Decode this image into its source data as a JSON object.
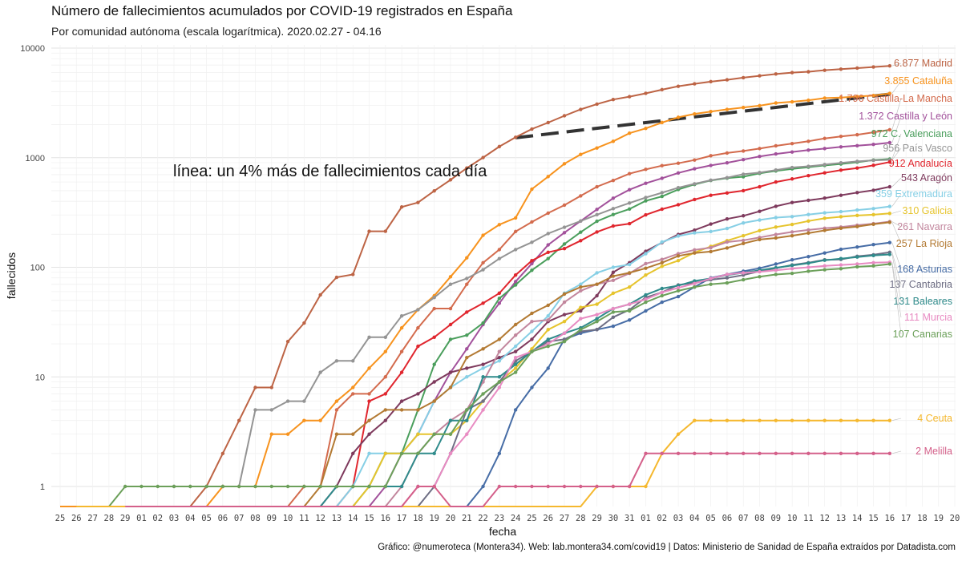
{
  "title": "Número de fallecimientos acumulados por COVID-19 registrados en España",
  "subtitle": "Por comunidad autónoma (escala logarítmica). 2020.02.27 - 04.16",
  "caption": "Gráfico: @numeroteca (Montera34). Web: lab.montera34.com/covid19 | Datos: Ministerio de Sanidad de España extraídos por Datadista.com",
  "chart_data": {
    "type": "line",
    "title": "Número de fallecimientos acumulados por COVID-19 registrados en España",
    "subtitle": "Por comunidad autónoma (escala logarítmica). 2020.02.27 - 04.16",
    "xlabel": "fecha",
    "ylabel": "fallecidos",
    "y_scale": "log",
    "ylim": [
      0.7,
      12000
    ],
    "y_ticks": [
      1,
      10,
      100,
      1000,
      10000
    ],
    "y_tick_labels": [
      "1",
      "10",
      "100",
      "1000",
      "10000"
    ],
    "x_tick_labels": [
      "25",
      "26",
      "27",
      "28",
      "29",
      "01",
      "02",
      "03",
      "04",
      "05",
      "06",
      "07",
      "08",
      "09",
      "10",
      "11",
      "12",
      "13",
      "14",
      "15",
      "16",
      "17",
      "18",
      "19",
      "20",
      "21",
      "22",
      "23",
      "24",
      "25",
      "26",
      "27",
      "28",
      "29",
      "30",
      "31",
      "01",
      "02",
      "03",
      "04",
      "05",
      "06",
      "07",
      "08",
      "09",
      "10",
      "11",
      "12",
      "13",
      "14",
      "15",
      "16",
      "17",
      "18",
      "19",
      "20"
    ],
    "data_start_label": "03",
    "grid": true,
    "annotation": "línea: un 4% más de fallecimientos cada día",
    "reference_line": {
      "description": "4% daily growth",
      "from_label": "24",
      "to_label": "16",
      "start_value": 1520,
      "end_value": 3800,
      "style": "dashed",
      "color": "#333333"
    },
    "series": [
      {
        "label": "6.877 Madrid",
        "color": "#bd6445",
        "values": [
          0.5,
          0.5,
          1,
          2,
          4,
          8,
          8,
          21,
          31,
          56,
          81,
          86,
          213,
          213,
          355,
          390,
          498,
          628,
          804,
          1002,
          1263,
          1535,
          1825,
          2090,
          2412,
          2757,
          3082,
          3392,
          3603,
          3865,
          4175,
          4483,
          4723,
          4941,
          5136,
          5371,
          5586,
          5800,
          5972,
          6084,
          6278,
          6423,
          6569,
          6724,
          6877
        ]
      },
      {
        "label": "3.855 Cataluña",
        "color": "#f7931e",
        "values": [
          0.5,
          0.5,
          0.5,
          0.5,
          0.5,
          0.5,
          0.5,
          0.5,
          0.5,
          0.5,
          1,
          1,
          1,
          3,
          3,
          4,
          4,
          6,
          8,
          12,
          17,
          28,
          41,
          55,
          82,
          122,
          196,
          245,
          282,
          516,
          672,
          880,
          1070,
          1226,
          1410,
          1672,
          1849,
          2093,
          2335,
          2508,
          2637,
          2756,
          2870,
          2981,
          3155,
          3234,
          3340,
          3497,
          3531,
          3614,
          3692,
          3855
        ]
      },
      {
        "label": "1.796 Castilla-La Mancha",
        "color": "#d36b4d",
        "values": [
          0.5,
          0.5,
          0.5,
          0.5,
          0.5,
          0.5,
          0.5,
          0.5,
          0.5,
          0.5,
          0.5,
          1,
          1,
          5,
          7,
          7,
          10,
          17,
          28,
          42,
          42,
          70,
          110,
          145,
          212,
          259,
          312,
          369,
          448,
          543,
          620,
          715,
          782,
          846,
          890,
          951,
          1041,
          1103,
          1150,
          1211,
          1283,
          1345,
          1410,
          1498,
          1563,
          1619,
          1703,
          1796
        ]
      },
      {
        "label": "1.372 Castilla y León",
        "color": "#a2519b",
        "values": [
          0.5,
          0.5,
          0.5,
          0.5,
          0.5,
          0.5,
          0.5,
          0.5,
          0.5,
          0.5,
          0.5,
          0.5,
          0.5,
          0.5,
          1,
          2,
          3,
          6,
          11,
          18,
          30,
          47,
          74,
          108,
          160,
          207,
          264,
          337,
          427,
          510,
          584,
          649,
          725,
          792,
          850,
          898,
          960,
          1026,
          1082,
          1127,
          1172,
          1211,
          1254,
          1287,
          1321,
          1372
        ]
      },
      {
        "label": "972 C. Valenciana",
        "color": "#4a9e5c",
        "values": [
          0.5,
          0.5,
          0.5,
          0.5,
          0.5,
          0.5,
          0.5,
          0.5,
          0.5,
          0.5,
          0.5,
          0.5,
          1,
          2,
          2,
          5,
          13,
          22,
          24,
          31,
          52,
          69,
          94,
          120,
          163,
          209,
          263,
          303,
          340,
          404,
          443,
          513,
          570,
          619,
          650,
          670,
          720,
          757,
          791,
          819,
          850,
          876,
          910,
          952,
          972
        ]
      },
      {
        "label": "956 País Vasco",
        "color": "#949494",
        "values": [
          1,
          1,
          1,
          1,
          1,
          5,
          5,
          6,
          6,
          11,
          14,
          14,
          23,
          23,
          36,
          41,
          53,
          70,
          79,
          95,
          120,
          145,
          169,
          203,
          232,
          264,
          302,
          343,
          386,
          433,
          479,
          532,
          577,
          623,
          657,
          706,
          731,
          771,
          813,
          834,
          865,
          897,
          925,
          945,
          956
        ]
      },
      {
        "label": "912 Andalucía",
        "color": "#e0262e",
        "values": [
          0.5,
          0.5,
          0.5,
          0.5,
          0.5,
          0.5,
          0.5,
          0.5,
          0.5,
          0.5,
          0.5,
          0.5,
          0.5,
          0.5,
          1,
          6,
          7,
          11,
          19,
          23,
          30,
          39,
          47,
          58,
          85,
          115,
          137,
          148,
          175,
          210,
          238,
          250,
          301,
          339,
          372,
          415,
          454,
          476,
          500,
          543,
          600,
          640,
          685,
          727,
          770,
          804,
          852,
          912
        ]
      },
      {
        "label": "543 Aragón",
        "color": "#7e3a5d",
        "values": [
          0.5,
          0.5,
          0.5,
          0.5,
          0.5,
          0.5,
          0.5,
          0.5,
          0.5,
          0.5,
          0.5,
          0.5,
          0.5,
          1,
          2,
          3,
          4,
          6,
          7,
          9,
          11,
          12,
          13,
          15,
          17,
          22,
          32,
          37,
          40,
          55,
          90,
          110,
          140,
          168,
          199,
          218,
          248,
          276,
          295,
          324,
          360,
          390,
          408,
          428,
          454,
          480,
          504,
          543
        ]
      },
      {
        "label": "359 Extremadura",
        "color": "#86cfe5",
        "values": [
          0.5,
          0.5,
          0.5,
          0.5,
          0.5,
          0.5,
          0.5,
          0.5,
          0.5,
          0.5,
          0.5,
          0.5,
          0.5,
          1,
          2,
          2,
          2,
          3,
          6,
          8,
          10,
          12,
          14,
          19,
          26,
          36,
          58,
          70,
          89,
          100,
          106,
          133,
          170,
          193,
          206,
          212,
          226,
          254,
          270,
          284,
          290,
          303,
          314,
          322,
          333,
          343,
          359
        ]
      },
      {
        "label": "310 Galicia",
        "color": "#e6c42d",
        "values": [
          0.5,
          0.5,
          0.5,
          0.5,
          0.5,
          0.5,
          0.5,
          0.5,
          0.5,
          0.5,
          0.5,
          0.5,
          0.5,
          1,
          2,
          2,
          3,
          3,
          3,
          4,
          6,
          9,
          12,
          18,
          27,
          32,
          43,
          46,
          58,
          66,
          85,
          102,
          115,
          136,
          155,
          175,
          194,
          216,
          233,
          246,
          264,
          280,
          289,
          297,
          302,
          310
        ]
      },
      {
        "label": "261 Navarra",
        "color": "#c2869d",
        "values": [
          0.5,
          0.5,
          0.5,
          0.5,
          0.5,
          0.5,
          0.5,
          0.5,
          0.5,
          0.5,
          0.5,
          0.5,
          0.5,
          0.5,
          0.5,
          0.5,
          1,
          2,
          3,
          4,
          5,
          9,
          17,
          24,
          32,
          33,
          48,
          61,
          70,
          76,
          88,
          108,
          118,
          133,
          144,
          151,
          170,
          176,
          187,
          199,
          210,
          219,
          227,
          233,
          242,
          250,
          261
        ]
      },
      {
        "label": "257 La Rioja",
        "color": "#b37a33",
        "values": [
          0.5,
          0.5,
          0.5,
          0.5,
          0.5,
          0.5,
          0.5,
          0.5,
          0.5,
          0.5,
          0.5,
          0.5,
          1,
          3,
          3,
          4,
          5,
          5,
          5,
          6,
          8,
          15,
          18,
          22,
          30,
          38,
          45,
          57,
          66,
          70,
          83,
          89,
          98,
          110,
          127,
          135,
          139,
          150,
          165,
          179,
          185,
          194,
          205,
          217,
          227,
          235,
          247,
          257
        ]
      },
      {
        "label": "168 Asturias",
        "color": "#476da6",
        "values": [
          0.5,
          0.5,
          0.5,
          0.5,
          0.5,
          0.5,
          0.5,
          0.5,
          0.5,
          0.5,
          0.5,
          0.5,
          0.5,
          0.5,
          0.5,
          0.5,
          0.5,
          0.5,
          0.5,
          1,
          2,
          5,
          8,
          12,
          22,
          25,
          27,
          29,
          33,
          40,
          48,
          54,
          66,
          80,
          86,
          92,
          98,
          107,
          117,
          125,
          135,
          146,
          153,
          161,
          168
        ]
      },
      {
        "label": "137 Cantabria",
        "color": "#6e6e84",
        "values": [
          0.5,
          0.5,
          0.5,
          0.5,
          0.5,
          0.5,
          0.5,
          0.5,
          0.5,
          0.5,
          0.5,
          0.5,
          0.5,
          0.5,
          0.5,
          0.5,
          0.5,
          0.5,
          0.5,
          0.5,
          1,
          2,
          5,
          6,
          9,
          14,
          17,
          21,
          22,
          26,
          27,
          35,
          41,
          53,
          59,
          69,
          72,
          77,
          80,
          85,
          92,
          98,
          105,
          110,
          117,
          118,
          126,
          130,
          137
        ]
      },
      {
        "label": "131 Baleares",
        "color": "#2f8b8b",
        "values": [
          0.5,
          0.5,
          0.5,
          0.5,
          0.5,
          0.5,
          0.5,
          0.5,
          0.5,
          0.5,
          0.5,
          0.5,
          0.5,
          0.5,
          1,
          1,
          1,
          1,
          1,
          2,
          2,
          4,
          4,
          10,
          10,
          13,
          17,
          22,
          25,
          28,
          34,
          42,
          46,
          56,
          64,
          68,
          75,
          79,
          85,
          89,
          94,
          99,
          104,
          109,
          116,
          120,
          124,
          128,
          131
        ]
      },
      {
        "label": "111 Murcia",
        "color": "#e88bc2",
        "values": [
          0.5,
          0.5,
          0.5,
          0.5,
          0.5,
          0.5,
          0.5,
          0.5,
          0.5,
          0.5,
          0.5,
          0.5,
          0.5,
          0.5,
          0.5,
          0.5,
          1,
          1,
          2,
          3,
          5,
          8,
          15,
          17,
          20,
          25,
          34,
          37,
          42,
          46,
          51,
          59,
          65,
          71,
          79,
          86,
          89,
          91,
          94,
          97,
          100,
          103,
          105,
          107,
          110,
          111
        ]
      },
      {
        "label": "107 Canarias",
        "color": "#6ca05a",
        "values": [
          0.5,
          1,
          1,
          1,
          1,
          1,
          1,
          1,
          1,
          1,
          1,
          1,
          1,
          1,
          1,
          1,
          1,
          1,
          2,
          2,
          3,
          3,
          5,
          7,
          9,
          11,
          17,
          19,
          21,
          27,
          32,
          39,
          40,
          48,
          55,
          61,
          66,
          70,
          72,
          77,
          82,
          86,
          88,
          92,
          95,
          97,
          101,
          103,
          107
        ]
      },
      {
        "label": "4 Ceuta",
        "color": "#f5b82e",
        "values": [
          0.5,
          0.5,
          0.5,
          0.5,
          0.5,
          0.5,
          0.5,
          0.5,
          0.5,
          0.5,
          0.5,
          0.5,
          0.5,
          0.5,
          0.5,
          0.5,
          0.5,
          0.5,
          0.5,
          0.5,
          0.5,
          0.5,
          0.5,
          0.5,
          0.5,
          0.5,
          0.5,
          0.5,
          0.5,
          0.5,
          0.5,
          0.5,
          1,
          1,
          1,
          1,
          2,
          3,
          4,
          4,
          4,
          4,
          4,
          4,
          4,
          4,
          4,
          4,
          4,
          4,
          4
        ]
      },
      {
        "label": "2 Melilla",
        "color": "#d4608a",
        "values": [
          0.5,
          0.5,
          0.5,
          0.5,
          0.5,
          0.5,
          0.5,
          0.5,
          0.5,
          0.5,
          0.5,
          0.5,
          0.5,
          0.5,
          0.5,
          0.5,
          0.5,
          0.5,
          1,
          1,
          0.5,
          0.5,
          0.5,
          1,
          1,
          1,
          1,
          1,
          1,
          1,
          1,
          1,
          2,
          2,
          2,
          2,
          2,
          2,
          2,
          2,
          2,
          2,
          2,
          2,
          2,
          2,
          2,
          2
        ]
      }
    ]
  }
}
